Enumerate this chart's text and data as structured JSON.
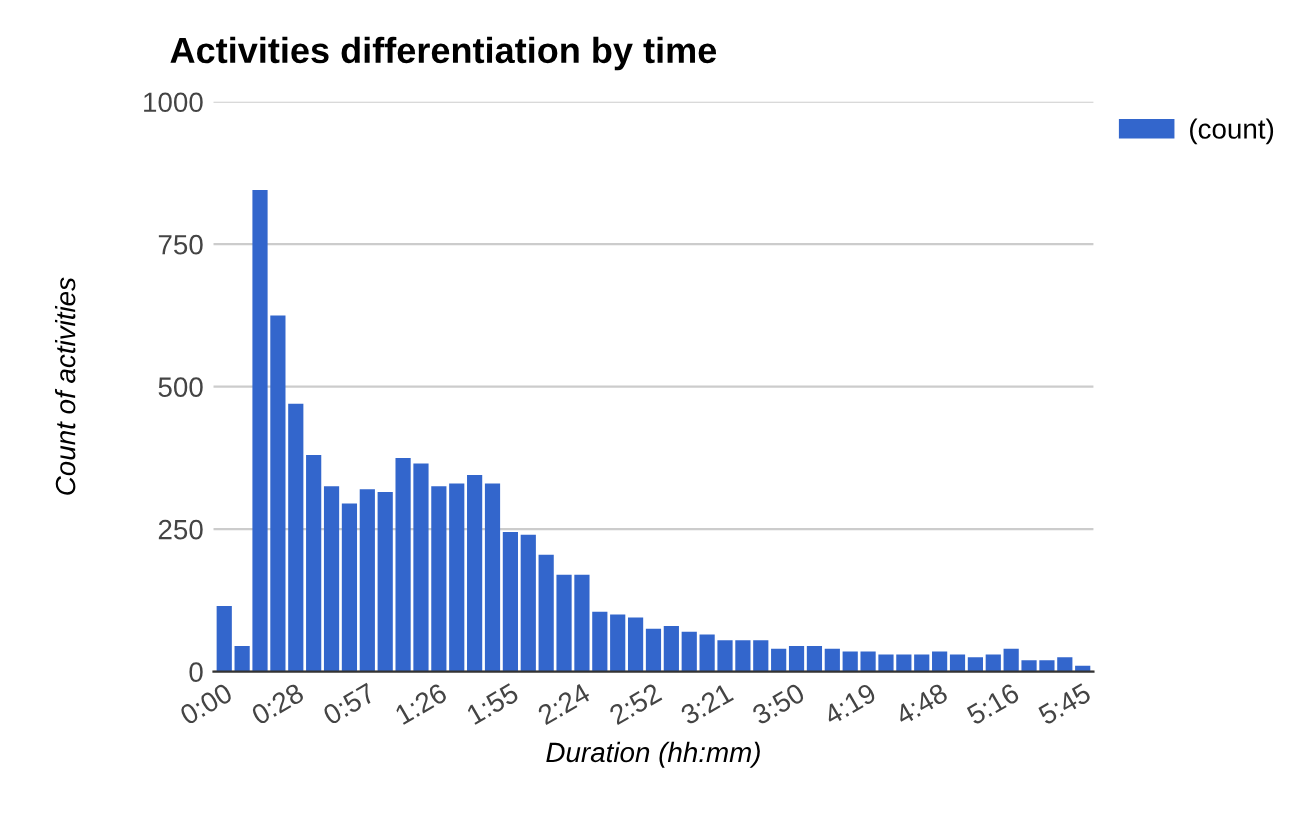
{
  "chart_data": {
    "type": "bar",
    "title": "Activities differentiation by time",
    "xlabel": "Duration (hh:mm)",
    "ylabel": "Count of activities",
    "categories": [
      "0:00",
      null,
      null,
      null,
      "0:28",
      null,
      null,
      null,
      "0:57",
      null,
      null,
      null,
      "1:26",
      null,
      null,
      null,
      "1:55",
      null,
      null,
      null,
      "2:24",
      null,
      null,
      null,
      "2:52",
      null,
      null,
      null,
      "3:21",
      null,
      null,
      null,
      "3:50",
      null,
      null,
      null,
      "4:19",
      null,
      null,
      null,
      "4:48",
      null,
      null,
      null,
      "5:16",
      null,
      null,
      null,
      "5:45"
    ],
    "series": [
      {
        "name": "(count)",
        "color": "#3366cc",
        "values": [
          115,
          45,
          845,
          625,
          470,
          380,
          325,
          295,
          320,
          315,
          375,
          365,
          325,
          330,
          345,
          330,
          245,
          240,
          205,
          170,
          170,
          105,
          100,
          95,
          75,
          80,
          70,
          65,
          55,
          55,
          55,
          40,
          45,
          45,
          40,
          35,
          35,
          30,
          30,
          30,
          35,
          30,
          25,
          30,
          40,
          20,
          20,
          25,
          10
        ]
      }
    ],
    "ylim": [
      0,
      1000
    ],
    "yticks": [
      0,
      250,
      500,
      750,
      1000
    ],
    "grid": "y",
    "legend": "top right"
  }
}
